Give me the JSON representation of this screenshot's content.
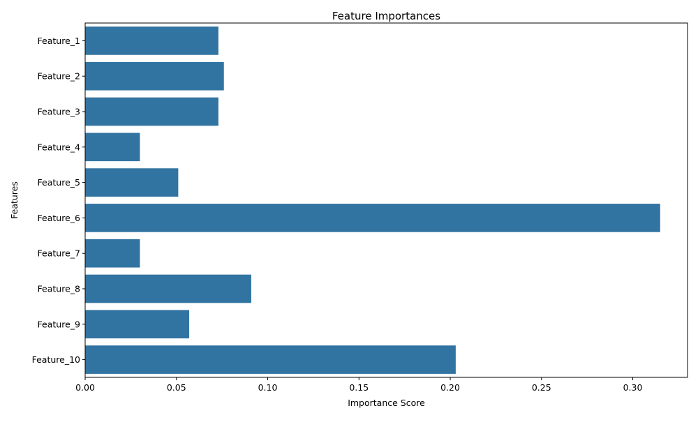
{
  "chart_data": {
    "type": "bar",
    "orientation": "horizontal",
    "title": "Feature Importances",
    "xlabel": "Importance Score",
    "ylabel": "Features",
    "categories": [
      "Feature_1",
      "Feature_2",
      "Feature_3",
      "Feature_4",
      "Feature_5",
      "Feature_6",
      "Feature_7",
      "Feature_8",
      "Feature_9",
      "Feature_10"
    ],
    "values": [
      0.073,
      0.076,
      0.073,
      0.03,
      0.051,
      0.315,
      0.03,
      0.091,
      0.057,
      0.203
    ],
    "xlim": [
      0,
      0.33
    ],
    "xticks": [
      0.0,
      0.05,
      0.1,
      0.15,
      0.2,
      0.25,
      0.3
    ],
    "xtick_labels": [
      "0.00",
      "0.05",
      "0.10",
      "0.15",
      "0.20",
      "0.25",
      "0.30"
    ],
    "bar_color": "#3274a1",
    "grid": false,
    "legend": "none"
  }
}
